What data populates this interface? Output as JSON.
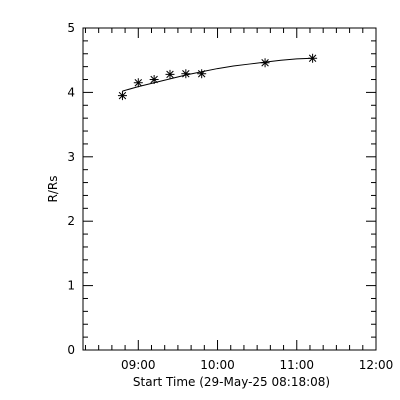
{
  "chart_data": {
    "type": "scatter",
    "title": "",
    "xlabel": "Start Time (29-May-25 08:18:08)",
    "ylabel": "R/Rs",
    "xlim": [
      8.3022,
      12.0
    ],
    "ylim": [
      0,
      5
    ],
    "x_ticks": [
      {
        "value": 9.0,
        "label": "09:00"
      },
      {
        "value": 10.0,
        "label": "10:00"
      },
      {
        "value": 11.0,
        "label": "11:00"
      },
      {
        "value": 12.0,
        "label": "12:00"
      }
    ],
    "y_ticks": [
      {
        "value": 0,
        "label": "0"
      },
      {
        "value": 1,
        "label": "1"
      },
      {
        "value": 2,
        "label": "2"
      },
      {
        "value": 3,
        "label": "3"
      },
      {
        "value": 4,
        "label": "4"
      },
      {
        "value": 5,
        "label": "5"
      }
    ],
    "series": [
      {
        "marker": "asterisk",
        "points": [
          {
            "x": 8.8,
            "y": 3.95
          },
          {
            "x": 9.0,
            "y": 4.15
          },
          {
            "x": 9.2,
            "y": 4.2
          },
          {
            "x": 9.4,
            "y": 4.28
          },
          {
            "x": 9.6,
            "y": 4.29
          },
          {
            "x": 9.8,
            "y": 4.29
          },
          {
            "x": 10.6,
            "y": 4.46
          },
          {
            "x": 11.2,
            "y": 4.53
          }
        ]
      }
    ],
    "fit_curve": {
      "x": [
        8.8,
        9.0,
        9.2,
        9.4,
        9.6,
        9.8,
        10.0,
        10.2,
        10.4,
        10.6,
        10.8,
        11.0,
        11.2
      ],
      "y": [
        4.02,
        4.09,
        4.15,
        4.21,
        4.27,
        4.32,
        4.37,
        4.41,
        4.44,
        4.47,
        4.5,
        4.52,
        4.53
      ]
    },
    "grid": false
  }
}
